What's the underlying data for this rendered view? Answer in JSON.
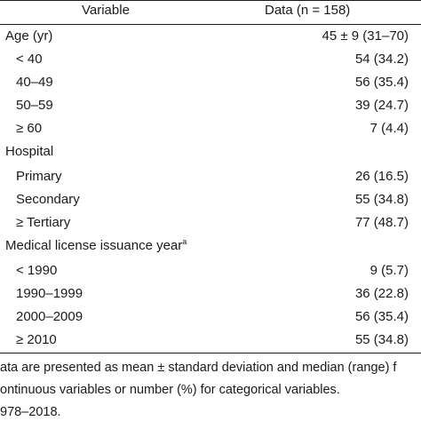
{
  "header": {
    "variable": "Variable",
    "data": "Data (n = 158)"
  },
  "rows": [
    {
      "label": "Age (yr)",
      "value": "45 ± 9 (31–70)"
    },
    {
      "label": "< 40",
      "value": "54 (34.2)"
    },
    {
      "label": "40–49",
      "value": "56 (35.4)"
    },
    {
      "label": "50–59",
      "value": "39 (24.7)"
    },
    {
      "label": "≥ 60",
      "value": "7 (4.4)"
    },
    {
      "label": "Hospital",
      "value": ""
    },
    {
      "label": "Primary",
      "value": "26 (16.5)"
    },
    {
      "label": "Secondary",
      "value": "55 (34.8)"
    },
    {
      "label": "≥ Tertiary",
      "value": "77 (48.7)"
    },
    {
      "label": "Medical license issuance year",
      "value": ""
    },
    {
      "label": "< 1990",
      "value": "9 (5.7)"
    },
    {
      "label": "1990–1999",
      "value": "36 (22.8)"
    },
    {
      "label": "2000–2009",
      "value": "56 (35.4)"
    },
    {
      "label": "≥ 2010",
      "value": "55 (34.8)"
    }
  ],
  "license_footnote_mark": "a",
  "footnotes": {
    "line1": "ata are presented as mean ± standard deviation and median (range) f",
    "line2": "ontinuous variables or number (%) for categorical variables.",
    "line3": "978–2018."
  }
}
